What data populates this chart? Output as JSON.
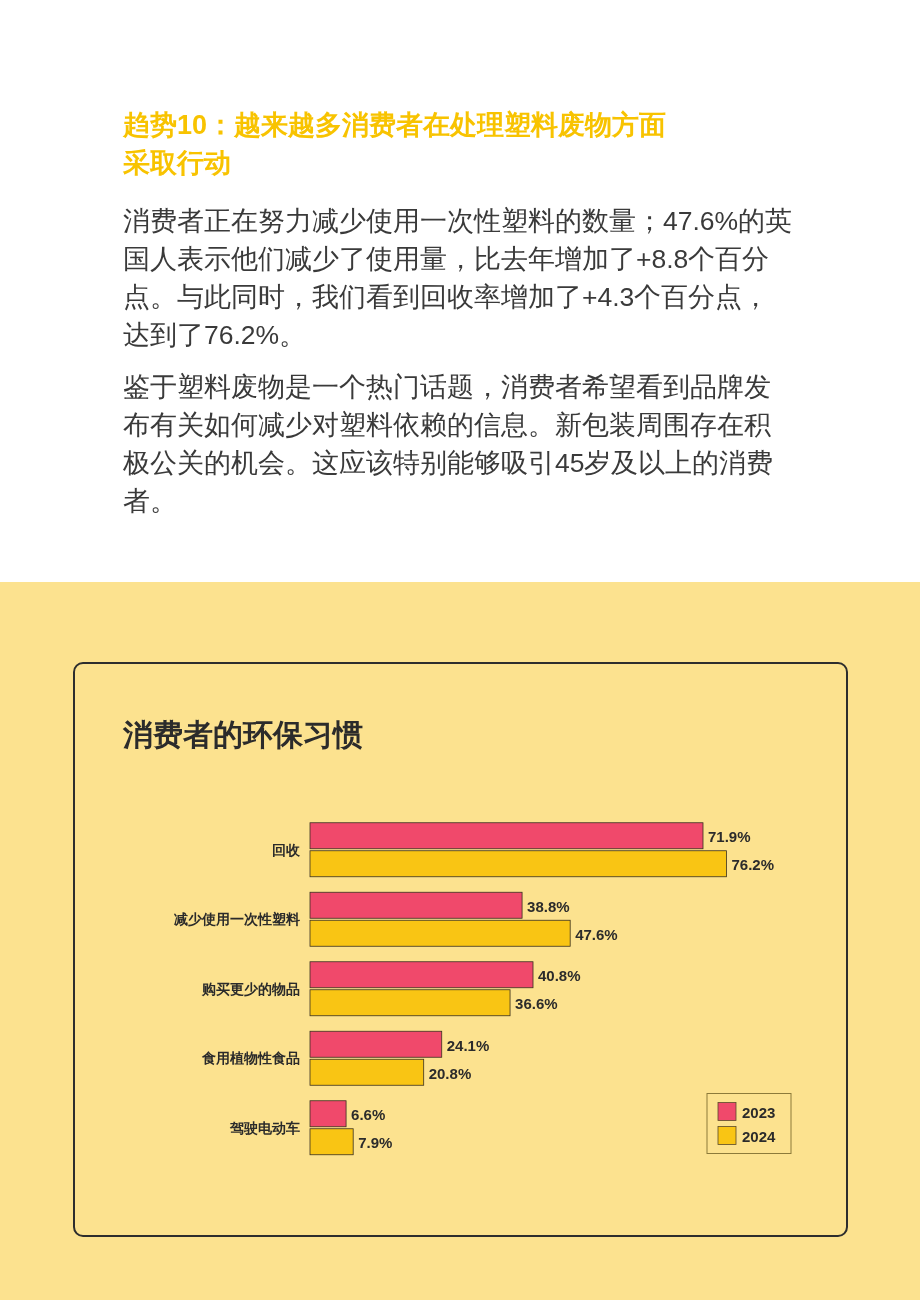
{
  "chart_data": {
    "type": "bar",
    "orientation": "horizontal",
    "title": "消费者的环保习惯",
    "annotations": [
      "趋势10：越来越多消费者在处理塑料废物方面采取行动",
      "消费者正在努力减少使用一次性塑料的数量；47.6%的英国人表示他们减少了使用量，比去年增加了+8.8个百分点。与此同时，我们看到回收率增加了+4.3个百分点，达到了76.2%。",
      "鉴于塑料废物是一个热门话题，消费者希望看到品牌发布有关如何减少对塑料依赖的信息。新包装周围存在积极公关的机会。这应该特别能够吸引45岁及以上的消费者。"
    ],
    "categories": [
      "回收",
      "减少使用一次性塑料",
      "购买更少的物品",
      "食用植物性食品",
      "驾驶电动车"
    ],
    "series": [
      {
        "name": "2023",
        "color": "#f0496b",
        "values": [
          71.9,
          38.8,
          40.8,
          24.1,
          6.6
        ],
        "value_labels": [
          "71.9%",
          "38.8%",
          "40.8%",
          "24.1%",
          "6.6%"
        ]
      },
      {
        "name": "2024",
        "color": "#f9c514",
        "values": [
          76.2,
          47.6,
          36.6,
          20.8,
          7.9
        ],
        "value_labels": [
          "76.2%",
          "47.6%",
          "36.6%",
          "20.8%",
          "7.9%"
        ]
      }
    ],
    "xlim": [
      0,
      88
    ],
    "tick_labels": "y",
    "legend": "bottom right"
  }
}
